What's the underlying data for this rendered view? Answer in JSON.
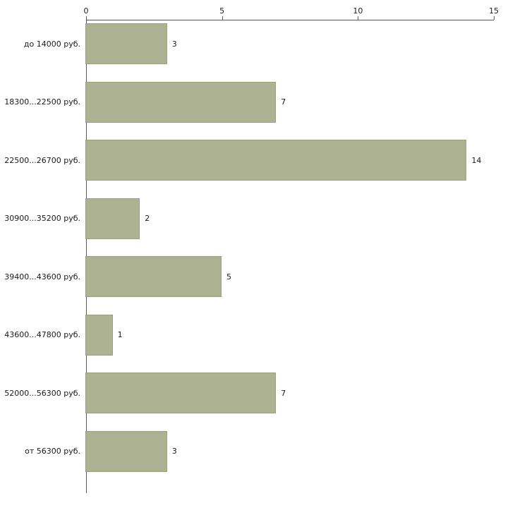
{
  "chart_data": {
    "type": "bar",
    "orientation": "horizontal",
    "title": "",
    "xlabel": "",
    "ylabel": "",
    "categories": [
      "до 14000 руб.",
      "18300...22500 руб.",
      "22500...26700 руб.",
      "30900...35200 руб.",
      "39400...43600 руб.",
      "43600...47800 руб.",
      "52000...56300 руб.",
      "от 56300 руб."
    ],
    "values": [
      3,
      7,
      14,
      2,
      5,
      1,
      7,
      3
    ],
    "value_labels": [
      "3",
      "7",
      "14",
      "2",
      "5",
      "1",
      "7",
      "3"
    ],
    "xlim": [
      0,
      15
    ],
    "xticks": [
      0,
      5,
      10,
      15
    ],
    "grid": false,
    "legend": false,
    "colors": {
      "bar_fill": "#adb293",
      "bar_border": "#9aa07e",
      "axis": "#595959",
      "text": "#1a1a1a",
      "background": "#ffffff"
    }
  }
}
